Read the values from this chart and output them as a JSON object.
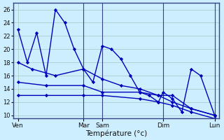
{
  "background_color": "#cceeff",
  "grid_color": "#aacccc",
  "line_color": "#0000bb",
  "xlabel": "Température (°c)",
  "ylim": [
    9.5,
    27
  ],
  "yticks": [
    10,
    12,
    14,
    16,
    18,
    20,
    22,
    24,
    26
  ],
  "xlim": [
    0,
    22
  ],
  "day_labels": [
    "Ven",
    "",
    "Mar",
    "Sam",
    "",
    "Dim",
    "",
    "Lun"
  ],
  "xtick_labels": [
    "Ven",
    "Mar",
    "Sam",
    "Dim",
    "Lun"
  ],
  "xtick_positions": [
    0.5,
    7.5,
    9.5,
    16.0,
    21.5
  ],
  "series1": {
    "x": [
      0.5,
      1.5,
      2.5,
      3.5,
      4.5,
      5.5,
      6.5,
      7.5,
      8.5,
      9.5,
      10.5,
      11.5,
      12.5,
      13.5,
      14.5,
      15.5,
      16.0,
      17.0,
      18.0,
      19.0,
      20.0,
      21.5
    ],
    "y": [
      23,
      18,
      22.5,
      16,
      26,
      24,
      20,
      17,
      15,
      20.5,
      20,
      18.5,
      16,
      13.5,
      13,
      12,
      13.5,
      12.5,
      10.5,
      17,
      16,
      10
    ]
  },
  "series2": {
    "x": [
      0.5,
      2.0,
      4.5,
      7.5,
      9.5,
      11.5,
      13.5,
      15.5,
      17.0,
      19.0,
      21.5
    ],
    "y": [
      18,
      17,
      16,
      17,
      15.5,
      14.5,
      14,
      13,
      13,
      11,
      10
    ]
  },
  "series3": {
    "x": [
      0.5,
      3.5,
      7.5,
      9.5,
      13.5,
      15.5,
      17.0,
      19.0,
      21.5
    ],
    "y": [
      15,
      14.5,
      14.5,
      13.5,
      13.5,
      13,
      12,
      11,
      10
    ]
  },
  "series4": {
    "x": [
      0.5,
      3.5,
      7.5,
      9.5,
      13.5,
      15.5,
      17.0,
      19.0,
      21.5
    ],
    "y": [
      13,
      13,
      13,
      13,
      12.5,
      12,
      11.5,
      10.5,
      9.5
    ]
  },
  "vlines": [
    7.5,
    9.5,
    16.0,
    21.5
  ]
}
